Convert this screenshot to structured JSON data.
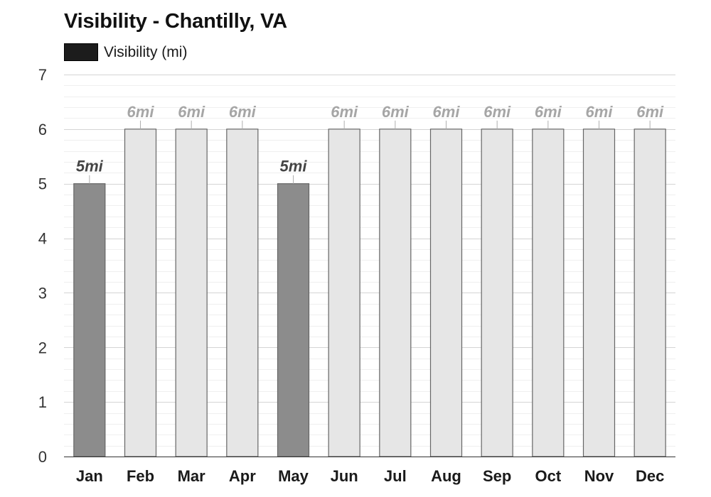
{
  "chart_data": {
    "type": "bar",
    "title": "Visibility - Chantilly, VA",
    "legend": [
      {
        "label": "Visibility (mi)",
        "color": "#1c1c1c"
      }
    ],
    "categories": [
      "Jan",
      "Feb",
      "Mar",
      "Apr",
      "May",
      "Jun",
      "Jul",
      "Aug",
      "Sep",
      "Oct",
      "Nov",
      "Dec"
    ],
    "series": [
      {
        "name": "Visibility (mi)",
        "values": [
          5,
          6,
          6,
          6,
          5,
          6,
          6,
          6,
          6,
          6,
          6,
          6
        ],
        "labels": [
          "5mi",
          "6mi",
          "6mi",
          "6mi",
          "5mi",
          "6mi",
          "6mi",
          "6mi",
          "6mi",
          "6mi",
          "6mi",
          "6mi"
        ]
      }
    ],
    "yticks": [
      0,
      1,
      2,
      3,
      4,
      5,
      6,
      7
    ],
    "ylim": [
      0,
      7
    ],
    "xlabel": "",
    "ylabel": "",
    "grid": true,
    "colors": {
      "dark_bar": "#8c8c8c",
      "light_bar": "#e6e6e6",
      "bar_stroke": "#666666",
      "dark_label": "#444444",
      "light_label": "#a6a6a6"
    }
  }
}
